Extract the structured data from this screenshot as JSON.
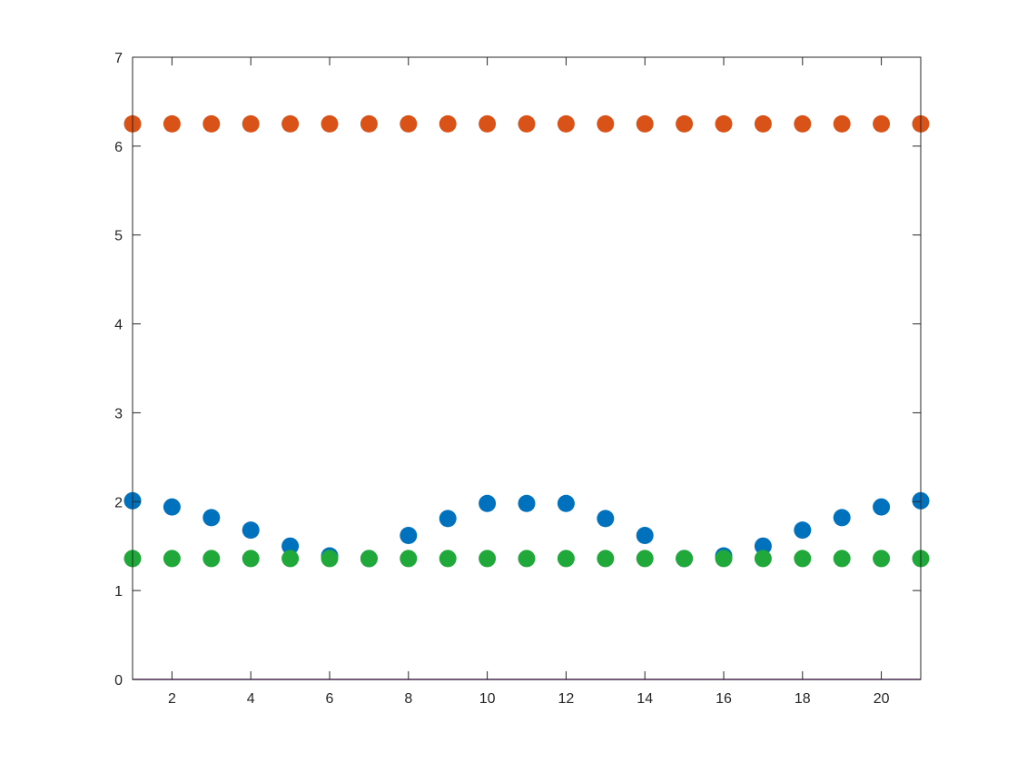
{
  "chart_data": {
    "type": "scatter",
    "title": "",
    "xlabel": "",
    "ylabel": "",
    "xlim": [
      1,
      21
    ],
    "ylim": [
      0,
      7
    ],
    "xticks": [
      2,
      4,
      6,
      8,
      10,
      12,
      14,
      16,
      18,
      20
    ],
    "yticks": [
      0,
      1,
      2,
      3,
      4,
      5,
      6,
      7
    ],
    "grid": false,
    "legend": "none",
    "x": [
      1,
      2,
      3,
      4,
      5,
      6,
      7,
      8,
      9,
      10,
      11,
      12,
      13,
      14,
      15,
      16,
      17,
      18,
      19,
      20,
      21
    ],
    "series": [
      {
        "color": "#0072BD",
        "values": [
          2.01,
          1.94,
          1.82,
          1.68,
          1.5,
          1.39,
          1.36,
          1.62,
          1.81,
          1.98,
          1.98,
          1.98,
          1.81,
          1.62,
          1.36,
          1.39,
          1.5,
          1.68,
          1.82,
          1.94,
          2.01
        ]
      },
      {
        "color": "#D95319",
        "values": [
          6.25,
          6.25,
          6.25,
          6.25,
          6.25,
          6.25,
          6.25,
          6.25,
          6.25,
          6.25,
          6.25,
          6.25,
          6.25,
          6.25,
          6.25,
          6.25,
          6.25,
          6.25,
          6.25,
          6.25,
          6.25
        ]
      },
      {
        "color": "#20A83A",
        "values": [
          1.36,
          1.36,
          1.36,
          1.36,
          1.36,
          1.36,
          1.36,
          1.36,
          1.36,
          1.36,
          1.36,
          1.36,
          1.36,
          1.36,
          1.36,
          1.36,
          1.36,
          1.36,
          1.36,
          1.36,
          1.36
        ]
      }
    ],
    "baseline": {
      "value": 0,
      "color": "#7E2F8E"
    }
  }
}
